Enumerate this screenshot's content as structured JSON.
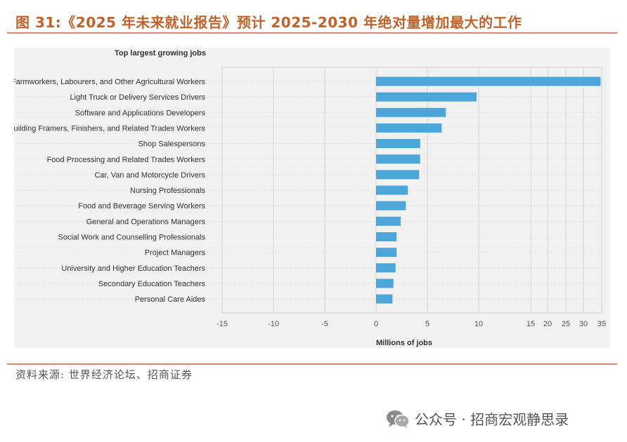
{
  "header": {
    "figure_title": "图 31:《2025 年未来就业报告》预计 2025-2030 年绝对量增加最大的工作"
  },
  "footer": {
    "source": "资料来源: 世界经济论坛、招商证券",
    "watermark": "公众号 · 招商宏观静思录"
  },
  "colors": {
    "bar": "#4da6da",
    "accent": "#c0622a"
  },
  "chart_data": {
    "type": "bar",
    "orientation": "horizontal",
    "title": "Top largest growing jobs",
    "xlabel": "Millions of jobs",
    "ylabel": "",
    "categories": [
      "Farmworkers, Labourers, and Other Agricultural Workers",
      "Light Truck or Delivery Services Drivers",
      "Software and Applications Developers",
      "Building Framers, Finishers, and Related Trades Workers",
      "Shop Salespersons",
      "Food Processing and Related Trades Workers",
      "Car, Van and Motorcycle Drivers",
      "Nursing Professionals",
      "Food and Beverage Serving Workers",
      "General and Operations Managers",
      "Social Work and Counselling Professionals",
      "Project Managers",
      "University and Higher Education Teachers",
      "Secondary Education Teachers",
      "Personal Care Aides"
    ],
    "values": [
      34.7,
      9.8,
      6.8,
      6.4,
      4.3,
      4.3,
      4.2,
      3.1,
      2.9,
      2.4,
      2.0,
      2.0,
      1.9,
      1.7,
      1.6
    ],
    "x_ticks": [
      -15,
      -10,
      -5,
      0,
      5,
      10,
      15,
      20,
      25,
      30,
      35
    ],
    "x_tick_labels": [
      "-15",
      "-10",
      "-5",
      "0",
      "5",
      "10",
      "15",
      "20",
      "25",
      "30",
      "35"
    ],
    "xlim": [
      -15,
      35
    ],
    "grid": true
  }
}
